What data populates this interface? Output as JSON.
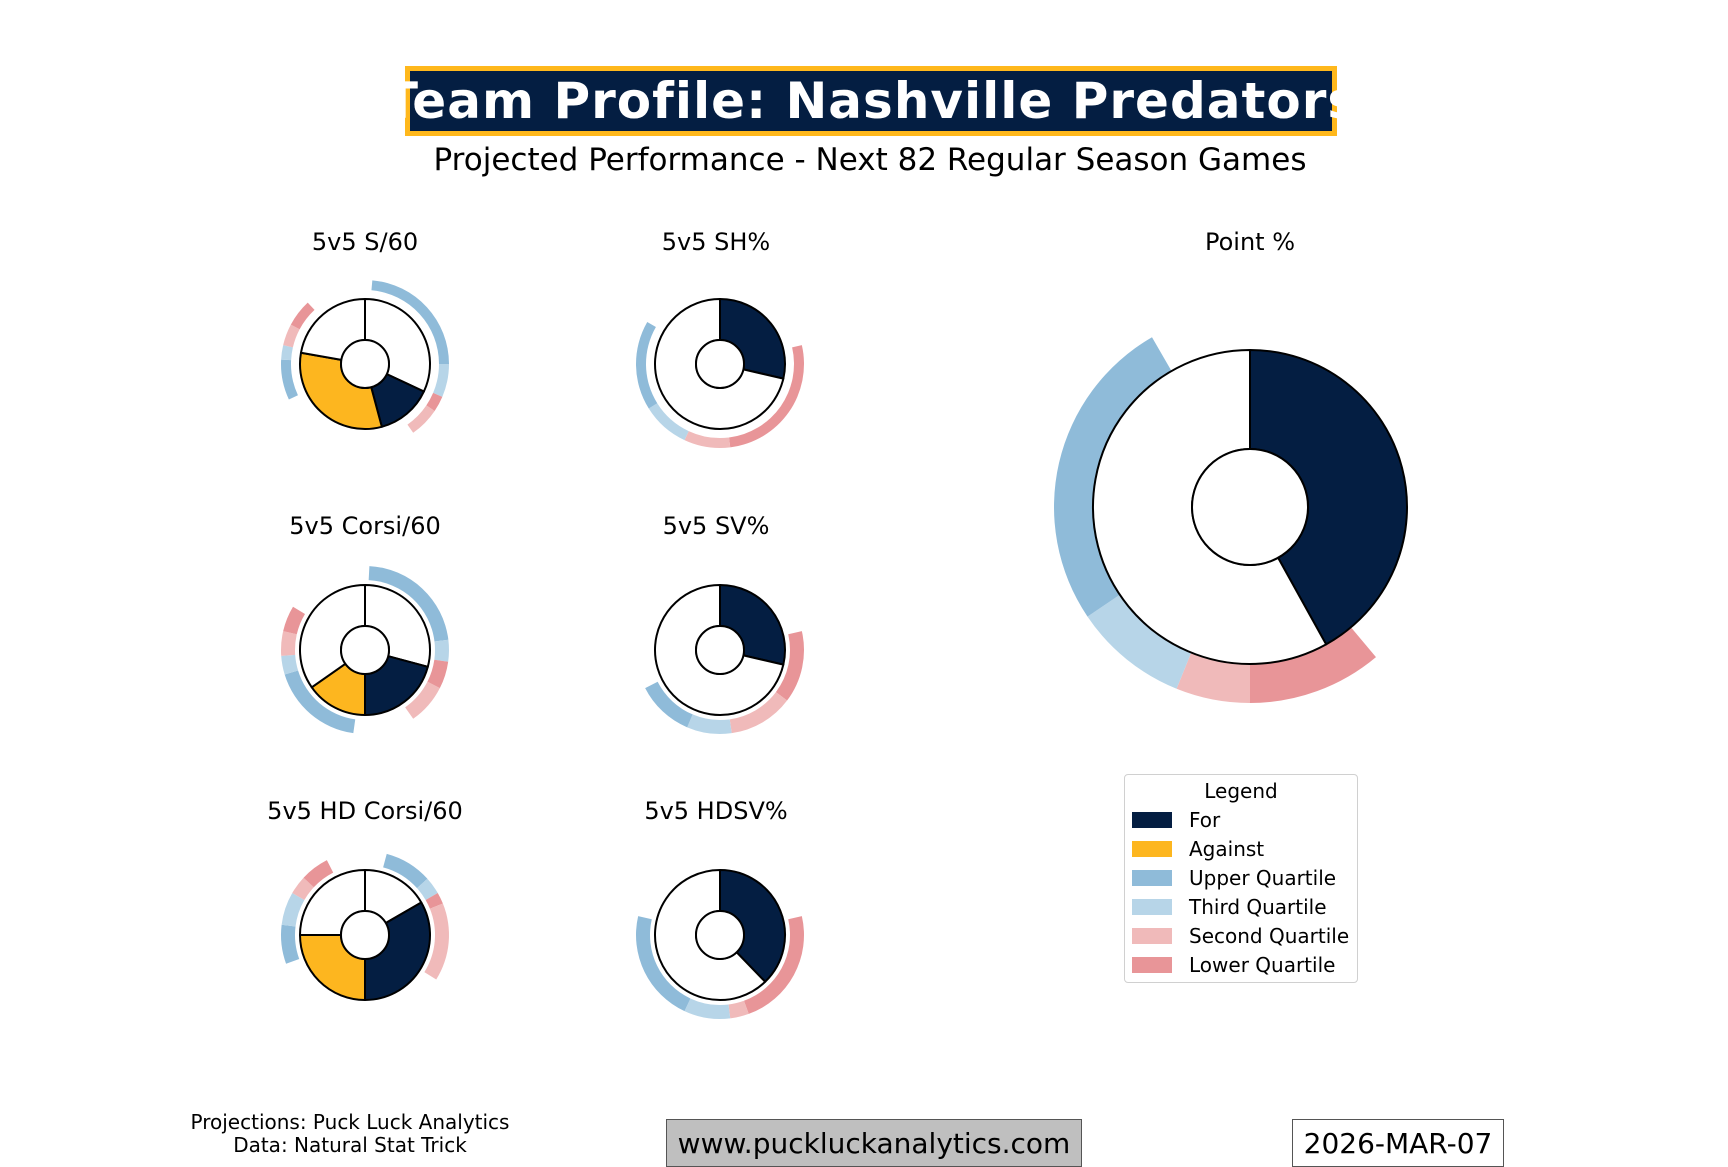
{
  "header": {
    "title": "Team Profile: Nashville Predators",
    "subtitle": "Projected Performance - Next 82 Regular Season Games"
  },
  "colors": {
    "for": "#041e42",
    "against": "#fdb61f",
    "upper": "#8fbbd9",
    "third": "#b7d5e8",
    "second": "#f0baba",
    "lower": "#e89598",
    "inner_ring": "#ffffff",
    "stroke": "#000000"
  },
  "chart_data": [
    {
      "type": "donut",
      "title": "5v5 S/60",
      "slices": [
        {
          "name": "Neutral",
          "value": 115
        },
        {
          "name": "For",
          "value": 50
        },
        {
          "name": "Against",
          "value": 115
        },
        {
          "name": "Neutral",
          "value": 80
        }
      ],
      "quartile_bands": [
        {
          "quartile": "Upper Quartile",
          "start_deg": 5,
          "end_deg": 90
        },
        {
          "quartile": "Third Quartile",
          "start_deg": 90,
          "end_deg": 113
        },
        {
          "quartile": "Lower Quartile",
          "start_deg": 113,
          "end_deg": 124
        },
        {
          "quartile": "Second Quartile",
          "start_deg": 124,
          "end_deg": 145
        },
        {
          "quartile": "Upper Quartile",
          "start_deg": 245,
          "end_deg": 273
        },
        {
          "quartile": "Third Quartile",
          "start_deg": 273,
          "end_deg": 283
        },
        {
          "quartile": "Second Quartile",
          "start_deg": 283,
          "end_deg": 298
        },
        {
          "quartile": "Lower Quartile",
          "start_deg": 298,
          "end_deg": 317
        }
      ]
    },
    {
      "type": "donut",
      "title": "5v5 SH%",
      "slices": [
        {
          "name": "For",
          "value": 103
        },
        {
          "name": "Neutral",
          "value": 257
        }
      ],
      "quartile_bands": [
        {
          "quartile": "Lower Quartile",
          "start_deg": 77,
          "end_deg": 173
        },
        {
          "quartile": "Second Quartile",
          "start_deg": 173,
          "end_deg": 205
        },
        {
          "quartile": "Third Quartile",
          "start_deg": 205,
          "end_deg": 238
        },
        {
          "quartile": "Upper Quartile",
          "start_deg": 238,
          "end_deg": 300
        }
      ]
    },
    {
      "type": "donut",
      "title": "Point %",
      "slices": [
        {
          "name": "For",
          "value": 151
        },
        {
          "name": "Neutral",
          "value": 209
        }
      ],
      "quartile_bands": [
        {
          "quartile": "Lower Quartile",
          "start_deg": 140,
          "end_deg": 180
        },
        {
          "quartile": "Second Quartile",
          "start_deg": 180,
          "end_deg": 202
        },
        {
          "quartile": "Third Quartile",
          "start_deg": 202,
          "end_deg": 236
        },
        {
          "quartile": "Upper Quartile",
          "start_deg": 236,
          "end_deg": 330
        }
      ]
    },
    {
      "type": "donut",
      "title": "5v5 Corsi/60",
      "slices": [
        {
          "name": "Neutral",
          "value": 105
        },
        {
          "name": "For",
          "value": 75
        },
        {
          "name": "Against",
          "value": 55
        },
        {
          "name": "Neutral",
          "value": 125
        }
      ],
      "quartile_bands": [
        {
          "quartile": "Upper Quartile",
          "start_deg": 3,
          "end_deg": 83
        },
        {
          "quartile": "Third Quartile",
          "start_deg": 83,
          "end_deg": 98
        },
        {
          "quartile": "Lower Quartile",
          "start_deg": 98,
          "end_deg": 117
        },
        {
          "quartile": "Second Quartile",
          "start_deg": 117,
          "end_deg": 145
        },
        {
          "quartile": "Upper Quartile",
          "start_deg": 188,
          "end_deg": 253
        },
        {
          "quartile": "Third Quartile",
          "start_deg": 253,
          "end_deg": 266
        },
        {
          "quartile": "Second Quartile",
          "start_deg": 266,
          "end_deg": 283
        },
        {
          "quartile": "Lower Quartile",
          "start_deg": 283,
          "end_deg": 301
        }
      ]
    },
    {
      "type": "donut",
      "title": "5v5 SV%",
      "slices": [
        {
          "name": "For",
          "value": 103
        },
        {
          "name": "Neutral",
          "value": 257
        }
      ],
      "quartile_bands": [
        {
          "quartile": "Lower Quartile",
          "start_deg": 77,
          "end_deg": 127
        },
        {
          "quartile": "Second Quartile",
          "start_deg": 127,
          "end_deg": 172
        },
        {
          "quartile": "Third Quartile",
          "start_deg": 172,
          "end_deg": 203
        },
        {
          "quartile": "Upper Quartile",
          "start_deg": 203,
          "end_deg": 243
        }
      ]
    },
    {
      "type": "donut",
      "title": "5v5 HD Corsi/60",
      "slices": [
        {
          "name": "Neutral",
          "value": 60
        },
        {
          "name": "For",
          "value": 120
        },
        {
          "name": "Against",
          "value": 90
        },
        {
          "name": "Neutral",
          "value": 90
        }
      ],
      "quartile_bands": [
        {
          "quartile": "Upper Quartile",
          "start_deg": 15,
          "end_deg": 48
        },
        {
          "quartile": "Third Quartile",
          "start_deg": 48,
          "end_deg": 60
        },
        {
          "quartile": "Lower Quartile",
          "start_deg": 60,
          "end_deg": 68
        },
        {
          "quartile": "Second Quartile",
          "start_deg": 68,
          "end_deg": 122
        },
        {
          "quartile": "Upper Quartile",
          "start_deg": 250,
          "end_deg": 277
        },
        {
          "quartile": "Third Quartile",
          "start_deg": 277,
          "end_deg": 300
        },
        {
          "quartile": "Second Quartile",
          "start_deg": 300,
          "end_deg": 313
        },
        {
          "quartile": "Lower Quartile",
          "start_deg": 313,
          "end_deg": 333
        }
      ]
    },
    {
      "type": "donut",
      "title": "5v5 HDSV%",
      "slices": [
        {
          "name": "For",
          "value": 136
        },
        {
          "name": "Neutral",
          "value": 224
        }
      ],
      "quartile_bands": [
        {
          "quartile": "Lower Quartile",
          "start_deg": 77,
          "end_deg": 160
        },
        {
          "quartile": "Second Quartile",
          "start_deg": 160,
          "end_deg": 173
        },
        {
          "quartile": "Third Quartile",
          "start_deg": 173,
          "end_deg": 205
        },
        {
          "quartile": "Upper Quartile",
          "start_deg": 205,
          "end_deg": 283
        }
      ]
    }
  ],
  "legend": {
    "title": "Legend",
    "items": [
      {
        "label": "For",
        "key": "for"
      },
      {
        "label": "Against",
        "key": "against"
      },
      {
        "label": "Upper Quartile",
        "key": "upper"
      },
      {
        "label": "Third Quartile",
        "key": "third"
      },
      {
        "label": "Second Quartile",
        "key": "second"
      },
      {
        "label": "Lower Quartile",
        "key": "lower"
      }
    ]
  },
  "footer": {
    "credits_line1": "Projections: Puck Luck Analytics",
    "credits_line2": "Data: Natural Stat Trick",
    "website": "www.puckluckanalytics.com",
    "date": "2026-MAR-07"
  }
}
